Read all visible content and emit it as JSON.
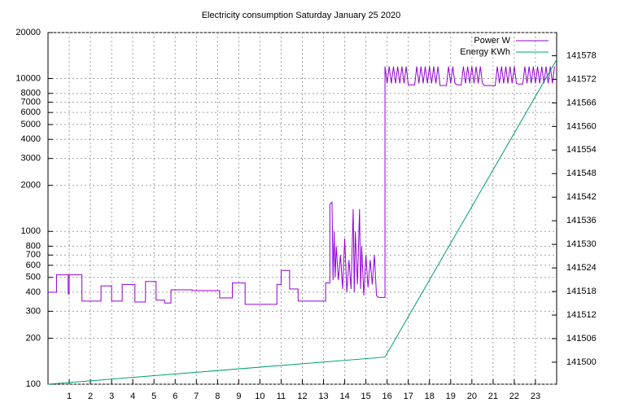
{
  "chart_data": {
    "type": "line",
    "title": "Electricity consumption Saturday January 25 2020",
    "ylog": true,
    "grid": true,
    "legend": "top-right",
    "xlim": [
      0,
      24
    ],
    "xticks": [
      1,
      2,
      3,
      4,
      5,
      6,
      7,
      8,
      9,
      10,
      11,
      12,
      13,
      14,
      15,
      16,
      17,
      18,
      19,
      20,
      21,
      22,
      23
    ],
    "ylim": [
      100,
      20000
    ],
    "yticks": [
      100,
      200,
      300,
      400,
      500,
      600,
      700,
      800,
      1000,
      2000,
      3000,
      4000,
      5000,
      6000,
      7000,
      8000,
      10000,
      20000
    ],
    "y2lim": [
      141494.4,
      141583.9
    ],
    "y2ticks": [
      141500,
      141506,
      141512,
      141518,
      141524,
      141530,
      141536,
      141542,
      141548,
      141554,
      141560,
      141566,
      141572,
      141578
    ],
    "series": [
      {
        "name": "Power W",
        "color": "#9400d3",
        "x": [
          0,
          0.4,
          0.4,
          0.95,
          0.95,
          1.0,
          1.0,
          1.6,
          1.6,
          2.5,
          2.5,
          3.0,
          3.0,
          3.5,
          3.5,
          4.1,
          4.1,
          4.6,
          4.6,
          5.1,
          5.1,
          5.5,
          5.5,
          5.8,
          5.8,
          6.8,
          6.8,
          8.1,
          8.1,
          8.7,
          8.7,
          9.3,
          9.3,
          10.8,
          10.8,
          11.0,
          11.0,
          11.4,
          11.4,
          11.8,
          11.8,
          13.1,
          13.1,
          13.3,
          13.3,
          13.4,
          13.45,
          13.5,
          13.55,
          13.6,
          13.7,
          13.8,
          13.9,
          14.0,
          14.1,
          14.2,
          14.3,
          14.4,
          14.45,
          14.5,
          14.6,
          14.7,
          14.75,
          14.8,
          14.9,
          15.0,
          15.1,
          15.2,
          15.3,
          15.4,
          15.5,
          15.6,
          15.9,
          15.9,
          16.0,
          16.1,
          16.2,
          16.3,
          16.4,
          16.5,
          16.6,
          16.7,
          16.8,
          16.9,
          17.0,
          17.3,
          17.4,
          17.5,
          17.6,
          17.7,
          17.8,
          17.9,
          18.0,
          18.1,
          18.2,
          18.3,
          18.4,
          18.5,
          18.8,
          18.9,
          19.0,
          19.1,
          19.2,
          19.3,
          19.5,
          19.6,
          19.7,
          19.8,
          19.9,
          20.0,
          20.1,
          20.2,
          20.3,
          20.4,
          20.5,
          20.6,
          21.1,
          21.2,
          21.3,
          21.4,
          21.5,
          21.6,
          21.7,
          21.8,
          21.9,
          22.0,
          22.1,
          22.2,
          22.4,
          22.5,
          22.6,
          22.7,
          22.8,
          22.9,
          23.0,
          23.1,
          23.2,
          23.3,
          23.4,
          23.5,
          23.6,
          23.7,
          23.8,
          23.9
        ],
        "values": [
          400,
          400,
          520,
          520,
          390,
          390,
          520,
          520,
          350,
          350,
          440,
          440,
          350,
          350,
          450,
          450,
          345,
          345,
          470,
          470,
          355,
          355,
          340,
          340,
          415,
          415,
          410,
          410,
          367,
          367,
          460,
          460,
          333,
          333,
          450,
          450,
          555,
          555,
          420,
          420,
          350,
          350,
          460,
          460,
          1500,
          1550,
          480,
          1000,
          500,
          800,
          480,
          700,
          420,
          900,
          400,
          650,
          420,
          1400,
          400,
          1000,
          450,
          1400,
          420,
          800,
          380,
          700,
          430,
          650,
          450,
          700,
          380,
          370,
          370,
          12000,
          9300,
          12000,
          9300,
          12000,
          9300,
          12000,
          9300,
          12000,
          9300,
          12000,
          9100,
          9100,
          12000,
          9300,
          12000,
          9300,
          12000,
          9300,
          12000,
          9300,
          12000,
          9300,
          12000,
          9000,
          9000,
          12000,
          9300,
          12000,
          9300,
          9100,
          9100,
          12000,
          9300,
          12000,
          9300,
          12000,
          9300,
          12000,
          9300,
          12000,
          9300,
          9000,
          9000,
          12000,
          9300,
          12000,
          9300,
          12000,
          9300,
          12000,
          9300,
          12000,
          9300,
          9200,
          9200,
          12000,
          9300,
          12000,
          9300,
          12000,
          9300,
          12000,
          9300,
          12000,
          9300,
          12000,
          9300,
          12000,
          9300,
          12000
        ]
      },
      {
        "name": "Energy KWh",
        "color": "#009e73",
        "axis": "y2",
        "x": [
          0,
          15.9,
          24
        ],
        "values": [
          141494.4,
          141501.3,
          141577
        ]
      }
    ]
  }
}
